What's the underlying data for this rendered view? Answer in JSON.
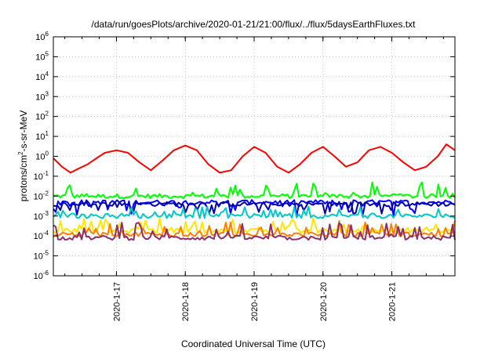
{
  "chart_data": {
    "type": "line",
    "title": "/data/run/goesPlots/archive/2020-01-21/21:00/flux/../flux/5daysEarthFluxes.txt",
    "xlabel": "Coordinated Universal Time (UTC)",
    "ylabel": {
      "prefix": "protons/cm",
      "exp": "2",
      "suffix": "-s-sr-MeV"
    },
    "y_scale": "log",
    "ylim": [
      1e-06,
      1000000.0
    ],
    "y_ticks": [
      {
        "base": "10",
        "exp": "-6",
        "value": 1e-06
      },
      {
        "base": "10",
        "exp": "-5",
        "value": 1e-05
      },
      {
        "base": "10",
        "exp": "-4",
        "value": 0.0001
      },
      {
        "base": "10",
        "exp": "-3",
        "value": 0.001
      },
      {
        "base": "10",
        "exp": "-2",
        "value": 0.01
      },
      {
        "base": "10",
        "exp": "-1",
        "value": 0.1
      },
      {
        "base": "10",
        "exp": "0",
        "value": 1
      },
      {
        "base": "10",
        "exp": "1",
        "value": 10
      },
      {
        "base": "10",
        "exp": "2",
        "value": 100
      },
      {
        "base": "10",
        "exp": "3",
        "value": 1000
      },
      {
        "base": "10",
        "exp": "4",
        "value": 10000
      },
      {
        "base": "10",
        "exp": "5",
        "value": 100000
      },
      {
        "base": "10",
        "exp": "6",
        "value": 1000000
      }
    ],
    "x_range": [
      "2020-01-16T02:00",
      "2020-01-21T22:00"
    ],
    "x_ticks": [
      "2020-1-17",
      "2020-1-18",
      "2020-1-19",
      "2020-1-20",
      "2020-1-21"
    ],
    "grid": true,
    "series": [
      {
        "color": "#ff0000",
        "x": [
          "2020-01-16T02:00",
          "2020-01-16T05:00",
          "2020-01-16T08:00",
          "2020-01-16T11:00",
          "2020-01-16T14:00",
          "2020-01-16T17:00",
          "2020-01-16T20:00",
          "2020-01-17T00:00",
          "2020-01-17T04:00",
          "2020-01-17T08:00",
          "2020-01-17T12:00",
          "2020-01-17T16:00",
          "2020-01-17T20:00",
          "2020-01-18T00:00",
          "2020-01-18T04:00",
          "2020-01-18T08:00",
          "2020-01-18T12:00",
          "2020-01-18T16:00",
          "2020-01-18T20:00",
          "2020-01-19T00:00",
          "2020-01-19T04:00",
          "2020-01-19T08:00",
          "2020-01-19T12:00",
          "2020-01-19T16:00",
          "2020-01-19T20:00",
          "2020-01-20T00:00",
          "2020-01-20T04:00",
          "2020-01-20T08:00",
          "2020-01-20T12:00",
          "2020-01-20T16:00",
          "2020-01-20T20:00",
          "2020-01-21T00:00",
          "2020-01-21T04:00",
          "2020-01-21T08:00",
          "2020-01-21T12:00",
          "2020-01-21T16:00",
          "2020-01-21T19:00",
          "2020-01-21T22:00"
        ],
        "values": [
          0.8,
          0.3,
          0.15,
          0.25,
          0.4,
          0.8,
          1.5,
          2.0,
          1.5,
          0.5,
          0.2,
          0.6,
          2.0,
          3.5,
          2.0,
          0.4,
          0.15,
          0.2,
          1.0,
          3.0,
          1.5,
          0.3,
          0.15,
          0.4,
          1.5,
          3.0,
          1.0,
          0.3,
          0.5,
          2.0,
          3.0,
          1.5,
          0.5,
          0.2,
          0.3,
          1.0,
          4.0,
          2.0
        ]
      },
      {
        "color": "#00ff00",
        "base": 0.01,
        "spikes_to": 0.05
      },
      {
        "color": "#0000ff",
        "base": 0.005,
        "dips_to": 0.001
      },
      {
        "color": "#0000aa",
        "base": 0.004,
        "dips_to": 0.0012
      },
      {
        "color": "#00c8c8",
        "base": 0.001,
        "spikes_to": 0.003
      },
      {
        "color": "#ffe600",
        "base": 0.00018,
        "spikes_to": 0.0008
      },
      {
        "color": "#ff7f00",
        "base": 0.00012,
        "spikes_to": 0.0006
      },
      {
        "color": "#8b2f6b",
        "base": 8e-05,
        "spikes_to": 0.0005
      }
    ]
  }
}
